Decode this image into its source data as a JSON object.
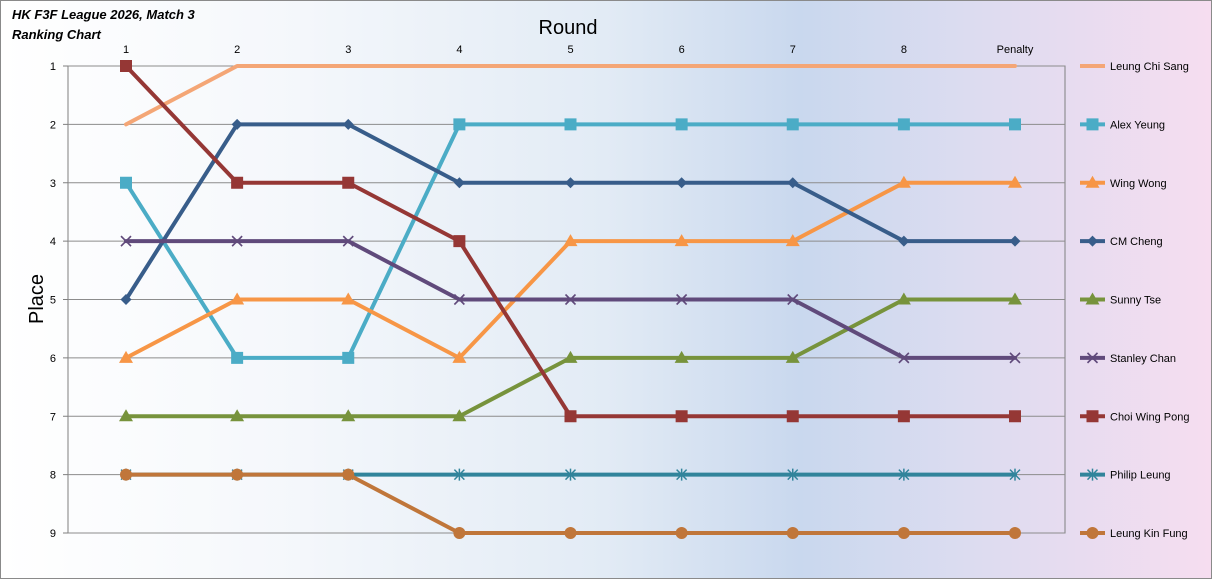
{
  "chart_data": {
    "type": "line",
    "title": "HK F3F League 2026, Match 3",
    "subtitle": "Ranking Chart",
    "xlabel": "Round",
    "ylabel": "Place",
    "categories": [
      "1",
      "2",
      "3",
      "4",
      "5",
      "6",
      "7",
      "8",
      "Penalty"
    ],
    "y_ticks": [
      "1",
      "2",
      "3",
      "4",
      "5",
      "6",
      "7",
      "8",
      "9"
    ],
    "ylim": [
      1,
      9
    ],
    "y_inverted": true,
    "x_axis_position": "top",
    "grid": "horizontal",
    "legend_position": "right",
    "series": [
      {
        "name": "Leung Chi Sang",
        "color": "#F4A676",
        "marker": "none",
        "values": [
          2,
          1,
          1,
          1,
          1,
          1,
          1,
          1,
          1
        ]
      },
      {
        "name": "Alex Yeung",
        "color": "#4BACC6",
        "marker": "square",
        "values": [
          3,
          6,
          6,
          2,
          2,
          2,
          2,
          2,
          2
        ]
      },
      {
        "name": "Wing Wong",
        "color": "#F79646",
        "marker": "triangle",
        "values": [
          6,
          5,
          5,
          6,
          4,
          4,
          4,
          3,
          3
        ]
      },
      {
        "name": "CM Cheng",
        "color": "#385D8A",
        "marker": "diamond",
        "values": [
          5,
          2,
          2,
          3,
          3,
          3,
          3,
          4,
          4
        ]
      },
      {
        "name": "Sunny Tse",
        "color": "#77933C",
        "marker": "triangle",
        "values": [
          7,
          7,
          7,
          7,
          6,
          6,
          6,
          5,
          5
        ]
      },
      {
        "name": "Stanley Chan",
        "color": "#604A7B",
        "marker": "x",
        "values": [
          4,
          4,
          4,
          5,
          5,
          5,
          5,
          6,
          6
        ]
      },
      {
        "name": "Choi Wing Pong",
        "color": "#953735",
        "marker": "square",
        "values": [
          1,
          3,
          3,
          4,
          7,
          7,
          7,
          7,
          7
        ]
      },
      {
        "name": "Philip Leung",
        "color": "#31849B",
        "marker": "star",
        "values": [
          8,
          8,
          8,
          8,
          8,
          8,
          8,
          8,
          8
        ]
      },
      {
        "name": "Leung Kin Fung",
        "color": "#C0763A",
        "marker": "circle",
        "values": [
          8,
          8,
          8,
          9,
          9,
          9,
          9,
          9,
          9
        ]
      }
    ]
  }
}
